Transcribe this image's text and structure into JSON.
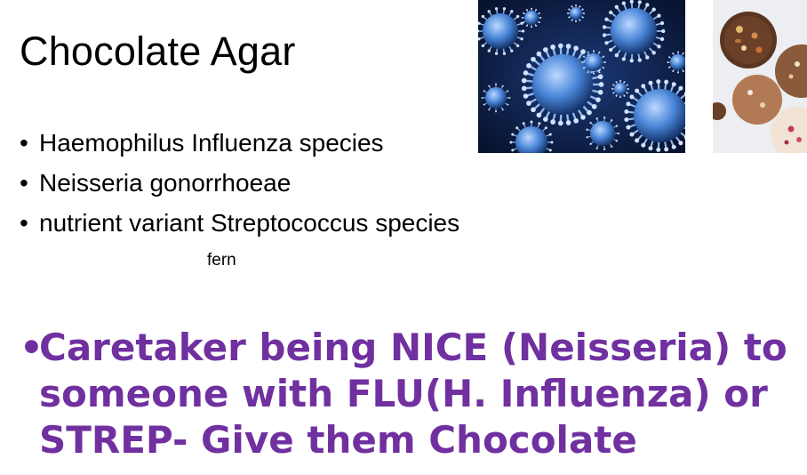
{
  "slide": {
    "title": "Chocolate Agar",
    "bullets": [
      "Haemophilus Influenza species",
      "Neisseria gonorrhoeae",
      "nutrient variant Streptococcus species"
    ],
    "caption": "fern",
    "mnemonic": "Caretaker being NICE (Neisseria) to someone with FLU(H. Influenza) or STREP- Give them Chocolate",
    "bullet_symbol": "•"
  },
  "colors": {
    "mnemonic": "#7030a0",
    "virus_background": "#0b1a3a",
    "virus_particle": "#3f7fd0",
    "chocolate_background": "#eeeef0"
  },
  "images": {
    "virus": "virus-particles-photo",
    "chocolate": "chocolate-discs-photo"
  }
}
